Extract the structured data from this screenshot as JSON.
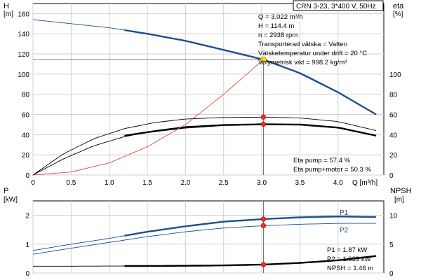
{
  "title_box": "CRN 3-23, 3*400 V, 50Hz",
  "info": [
    "Q = 3.022 m³/h",
    "H = 114.4 m",
    "n = 2938 rpm",
    "Transporterad vätska = Vatten",
    "Vätsketemperatur under drift = 20 °C",
    "Volymetrisk vikt = 998.2 kg/m³"
  ],
  "eta_notes": [
    "Eta pump = 57.4 %",
    "Eta pump+motor = 50.3 %"
  ],
  "power_notes": [
    "P1 = 1.87 kW",
    "P2 = 1.639 kW",
    "NPSH = 1.46 m"
  ],
  "colors": {
    "head": "#1f4e8c",
    "efficiency": "#000000",
    "system": "#e83030",
    "duty_point": "#ff2a2a",
    "duty_point_head": "#ffd21a"
  },
  "chart_data": [
    {
      "type": "line",
      "name": "head-efficiency",
      "x_axis": {
        "label": "Q [m³/h]",
        "range": [
          0,
          4.6
        ],
        "ticks": [
          0,
          0.5,
          1.0,
          1.5,
          2.0,
          2.5,
          3.0,
          3.5,
          4.0
        ],
        "tick_labels": [
          "0",
          "0.5",
          "1.0",
          "1.5",
          "2.0",
          "2.5",
          "3.0",
          "3.5",
          "4.0"
        ]
      },
      "y_axis_left": {
        "label_top": "H",
        "label_unit": "[m]",
        "range": [
          0,
          170
        ],
        "ticks": [
          0,
          20,
          40,
          60,
          80,
          100,
          120,
          140,
          160
        ]
      },
      "y_axis_right": {
        "label_top": "eta",
        "label_unit": "[%]",
        "range": [
          0,
          170
        ],
        "ticks": [
          0,
          20,
          40,
          60,
          80,
          100
        ]
      },
      "grid": true,
      "series": [
        {
          "x": [
            0,
            0.5,
            1.0,
            1.5,
            2.0,
            2.5,
            3.022,
            3.5,
            4.0,
            4.5
          ],
          "y": [
            154,
            150,
            146,
            140,
            133,
            124,
            114.4,
            101,
            82,
            60
          ],
          "role": "head",
          "bold_from_x": 1.2
        },
        {
          "x": [
            0,
            0.4,
            0.8,
            1.2,
            1.6,
            2.0,
            2.5,
            3.022,
            3.5,
            4.0,
            4.5
          ],
          "y": [
            0,
            21,
            36,
            46,
            52,
            55.5,
            57,
            57.4,
            56.5,
            53,
            44
          ],
          "role": "eta-pump-thin"
        },
        {
          "x": [
            1.2,
            1.6,
            2.0,
            2.5,
            3.022,
            3.5,
            4.0,
            4.5
          ],
          "y": [
            39,
            43.5,
            47,
            49.5,
            50.3,
            50,
            47,
            39
          ],
          "role": "eta-pump-motor-bold"
        },
        {
          "x": [
            0,
            0.4,
            0.8,
            1.2,
            1.6,
            2.0,
            2.5,
            3.022
          ],
          "y": [
            0,
            16,
            29,
            38,
            44,
            48,
            50,
            50.3
          ],
          "role": "eta-pump-motor-thin"
        },
        {
          "x": [
            0,
            0.5,
            1.0,
            1.5,
            2.0,
            2.5,
            3.022
          ],
          "y": [
            0,
            3,
            12,
            28,
            50,
            80,
            114.4
          ],
          "role": "system"
        }
      ],
      "duty_points": [
        {
          "x": 3.022,
          "y": 114.4,
          "role": "head"
        },
        {
          "x": 3.022,
          "y": 57.4,
          "role": "eta"
        },
        {
          "x": 3.022,
          "y": 50.3,
          "role": "eta"
        }
      ]
    },
    {
      "type": "line",
      "name": "power-npsh",
      "x_axis": {
        "range": [
          0,
          4.6
        ],
        "ticks": [
          0,
          0.5,
          1.0,
          1.5,
          2.0,
          2.5,
          3.0,
          3.5,
          4.0
        ]
      },
      "y_axis_left": {
        "label_top": "P",
        "label_unit": "[kW]",
        "range": [
          0,
          2.5
        ],
        "ticks": [
          0,
          1,
          2
        ]
      },
      "y_axis_right": {
        "label_top": "NPSH",
        "label_unit": "[m]",
        "range": [
          0,
          12.5
        ],
        "ticks": [
          0,
          5,
          10
        ]
      },
      "grid": true,
      "series": [
        {
          "name": "P1",
          "x": [
            0,
            0.5,
            1.0,
            1.5,
            2.0,
            2.5,
            3.022,
            3.5,
            4.0,
            4.5
          ],
          "y": [
            0.78,
            1.0,
            1.2,
            1.43,
            1.62,
            1.78,
            1.87,
            1.93,
            1.96,
            1.94
          ],
          "role": "p1",
          "bold_from_x": 1.2
        },
        {
          "name": "P2",
          "x": [
            0,
            0.5,
            1.0,
            1.5,
            2.0,
            2.5,
            3.022,
            3.5,
            4.0,
            4.5
          ],
          "y": [
            0.65,
            0.86,
            1.06,
            1.26,
            1.43,
            1.56,
            1.639,
            1.69,
            1.72,
            1.72
          ],
          "role": "p2"
        },
        {
          "x": [
            0,
            0.5,
            1.0,
            1.5,
            2.0,
            2.5,
            3.022,
            3.5,
            4.0,
            4.5
          ],
          "y": [
            1.18,
            1.18,
            1.2,
            1.22,
            1.25,
            1.32,
            1.46,
            1.75,
            2.2,
            2.95
          ],
          "role": "npsh",
          "axis": "right",
          "bold_from_x": 1.2
        }
      ],
      "duty_points": [
        {
          "x": 3.022,
          "y": 1.87,
          "role": "p1"
        },
        {
          "x": 3.022,
          "y": 1.639,
          "role": "p2"
        },
        {
          "x": 3.022,
          "y": 1.46,
          "role": "npsh",
          "axis": "right"
        }
      ]
    }
  ]
}
